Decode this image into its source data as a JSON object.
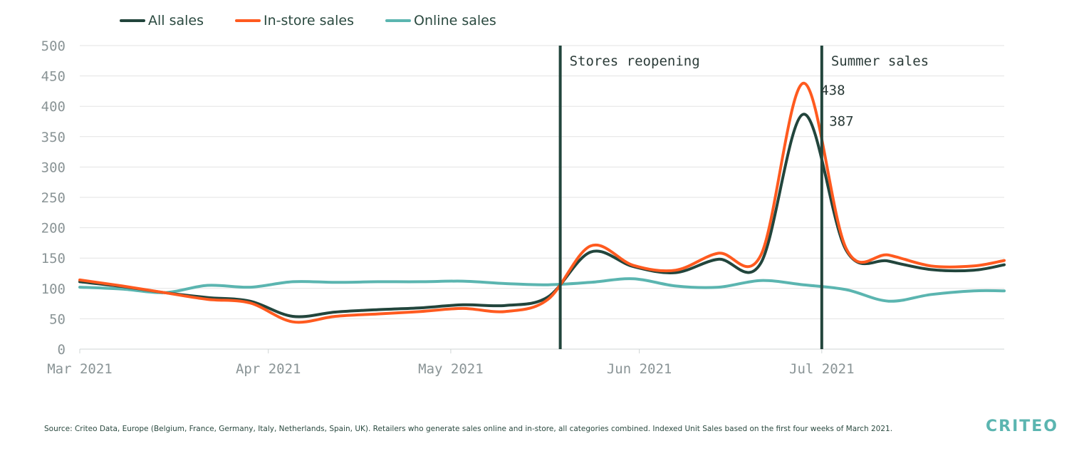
{
  "legend": {
    "all": "All sales",
    "instore": "In-store sales",
    "online": "Online sales"
  },
  "colors": {
    "all": "#22453c",
    "instore": "#ff5a1f",
    "online": "#5bb5b0",
    "grid": "#e3e3e3",
    "axis_text": "#8a9496",
    "annotation_line": "#22453c"
  },
  "annotations": {
    "reopening": "Stores reopening",
    "summer": "Summer sales",
    "peak_instore": "438",
    "peak_all": "387"
  },
  "footer": {
    "source": "Source: Criteo Data, Europe (Belgium, France, Germany, Italy, Netherlands, Spain, UK). Retailers who generate sales online and in-store, all categories combined. Indexed Unit Sales based on the first four weeks of March 2021.",
    "brand": "CRITEO"
  },
  "chart_data": {
    "type": "line",
    "ylim": [
      0,
      500
    ],
    "yticks": [
      0,
      50,
      100,
      150,
      200,
      250,
      300,
      350,
      400,
      450,
      500
    ],
    "xticks": [
      {
        "label": "Mar 2021",
        "date": "2021-03-01"
      },
      {
        "label": "Apr 2021",
        "date": "2021-04-01"
      },
      {
        "label": "May 2021",
        "date": "2021-05-01"
      },
      {
        "label": "Jun 2021",
        "date": "2021-06-01"
      },
      {
        "label": "Jul 2021",
        "date": "2021-07-01"
      }
    ],
    "xrange": [
      "2021-03-01",
      "2021-07-31"
    ],
    "x": [
      "2021-03-01",
      "2021-03-08",
      "2021-03-15",
      "2021-03-22",
      "2021-03-29",
      "2021-04-05",
      "2021-04-12",
      "2021-04-19",
      "2021-04-26",
      "2021-05-03",
      "2021-05-10",
      "2021-05-17",
      "2021-05-24",
      "2021-05-31",
      "2021-06-07",
      "2021-06-14",
      "2021-06-21",
      "2021-06-28",
      "2021-07-05",
      "2021-07-12",
      "2021-07-19",
      "2021-07-26",
      "2021-07-31"
    ],
    "series": [
      {
        "name": "All sales",
        "key": "all",
        "values": [
          111,
          103,
          93,
          85,
          79,
          54,
          61,
          65,
          68,
          73,
          72,
          86,
          160,
          136,
          126,
          148,
          142,
          387,
          163,
          145,
          131,
          130,
          139
        ]
      },
      {
        "name": "In-store sales",
        "key": "instore",
        "values": [
          114,
          104,
          93,
          82,
          76,
          45,
          54,
          58,
          62,
          67,
          62,
          82,
          170,
          138,
          130,
          158,
          155,
          438,
          166,
          155,
          137,
          137,
          146
        ]
      },
      {
        "name": "Online sales",
        "key": "online",
        "values": [
          102,
          99,
          93,
          105,
          102,
          111,
          110,
          111,
          111,
          112,
          108,
          106,
          110,
          116,
          104,
          102,
          113,
          106,
          98,
          79,
          90,
          96,
          96
        ]
      }
    ],
    "vlines": [
      {
        "date": "2021-05-19",
        "label": "Stores reopening"
      },
      {
        "date": "2021-07-01",
        "label": "Summer sales"
      }
    ],
    "grid": true,
    "legend_position": "top-left"
  }
}
